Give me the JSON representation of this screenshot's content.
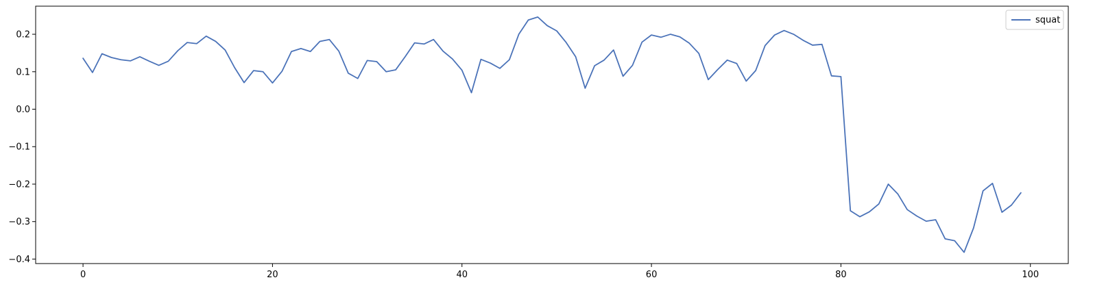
{
  "chart_data": {
    "type": "line",
    "title": "",
    "xlabel": "",
    "ylabel": "",
    "xlim": [
      -5,
      104
    ],
    "ylim": [
      -0.412,
      0.275
    ],
    "xticks": [
      0,
      20,
      40,
      60,
      80,
      100
    ],
    "xtick_labels": [
      "0",
      "20",
      "40",
      "60",
      "80",
      "100"
    ],
    "yticks": [
      -0.4,
      -0.3,
      -0.2,
      -0.1,
      0.0,
      0.1,
      0.2
    ],
    "ytick_labels": [
      "−0.4",
      "−0.3",
      "−0.2",
      "−0.1",
      "0.0",
      "0.1",
      "0.2"
    ],
    "grid": false,
    "legend": {
      "position": "top-right",
      "entries": [
        "squat"
      ]
    },
    "series": [
      {
        "name": "squat",
        "color": "#4a72b8",
        "x": [
          0,
          1,
          2,
          3,
          4,
          5,
          6,
          7,
          8,
          9,
          10,
          11,
          12,
          13,
          14,
          15,
          16,
          17,
          18,
          19,
          20,
          21,
          22,
          23,
          24,
          25,
          26,
          27,
          28,
          29,
          30,
          31,
          32,
          33,
          34,
          35,
          36,
          37,
          38,
          39,
          40,
          41,
          42,
          43,
          44,
          45,
          46,
          47,
          48,
          49,
          50,
          51,
          52,
          53,
          54,
          55,
          56,
          57,
          58,
          59,
          60,
          61,
          62,
          63,
          64,
          65,
          66,
          67,
          68,
          69,
          70,
          71,
          72,
          73,
          74,
          75,
          76,
          77,
          78,
          79,
          80,
          81,
          82,
          83,
          84,
          85,
          86,
          87,
          88,
          89,
          90,
          91,
          92,
          93,
          94,
          95,
          96,
          97,
          98,
          99
        ],
        "values": [
          0.136,
          0.098,
          0.148,
          0.138,
          0.132,
          0.129,
          0.14,
          0.128,
          0.117,
          0.128,
          0.156,
          0.178,
          0.175,
          0.195,
          0.181,
          0.158,
          0.111,
          0.071,
          0.103,
          0.1,
          0.07,
          0.101,
          0.154,
          0.162,
          0.154,
          0.181,
          0.186,
          0.155,
          0.096,
          0.082,
          0.13,
          0.127,
          0.1,
          0.105,
          0.14,
          0.177,
          0.174,
          0.186,
          0.155,
          0.134,
          0.104,
          0.044,
          0.133,
          0.123,
          0.109,
          0.132,
          0.2,
          0.238,
          0.246,
          0.223,
          0.209,
          0.178,
          0.14,
          0.056,
          0.116,
          0.131,
          0.158,
          0.088,
          0.117,
          0.179,
          0.198,
          0.192,
          0.2,
          0.193,
          0.176,
          0.149,
          0.079,
          0.106,
          0.131,
          0.122,
          0.075,
          0.103,
          0.17,
          0.198,
          0.21,
          0.2,
          0.184,
          0.171,
          0.173,
          0.089,
          0.087,
          -0.271,
          -0.287,
          -0.274,
          -0.253,
          -0.2,
          -0.226,
          -0.268,
          -0.285,
          -0.299,
          -0.295,
          -0.346,
          -0.351,
          -0.382,
          -0.317,
          -0.218,
          -0.198,
          -0.275,
          -0.256,
          -0.223
        ]
      }
    ]
  }
}
